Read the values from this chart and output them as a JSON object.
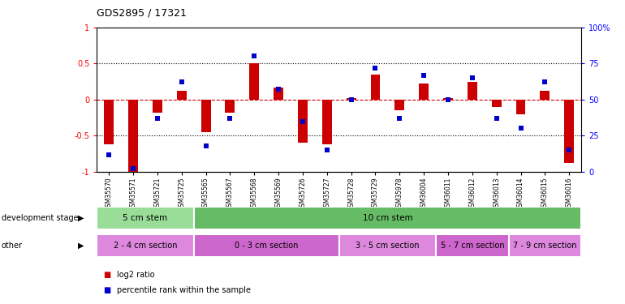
{
  "title": "GDS2895 / 17321",
  "samples": [
    "GSM35570",
    "GSM35571",
    "GSM35721",
    "GSM35725",
    "GSM35565",
    "GSM35567",
    "GSM35568",
    "GSM35569",
    "GSM35726",
    "GSM35727",
    "GSM35728",
    "GSM35729",
    "GSM35978",
    "GSM36004",
    "GSM36011",
    "GSM36012",
    "GSM36013",
    "GSM36014",
    "GSM36015",
    "GSM36016"
  ],
  "log2_ratio": [
    -0.62,
    -1.02,
    -0.18,
    0.12,
    -0.45,
    -0.18,
    0.5,
    0.17,
    -0.6,
    -0.62,
    0.02,
    0.35,
    -0.15,
    0.22,
    0.02,
    0.25,
    -0.1,
    -0.2,
    0.12,
    -0.88
  ],
  "percentile": [
    12,
    2,
    37,
    62,
    18,
    37,
    80,
    57,
    35,
    15,
    50,
    72,
    37,
    67,
    50,
    65,
    37,
    30,
    62,
    15
  ],
  "ylim_left": [
    -1,
    1
  ],
  "ylim_right": [
    0,
    100
  ],
  "yticks_left": [
    -1,
    -0.5,
    0,
    0.5,
    1
  ],
  "yticks_right": [
    0,
    25,
    50,
    75,
    100
  ],
  "bar_color": "#cc0000",
  "dot_color": "#0000cc",
  "zero_line_color": "#cc0000",
  "dotted_line_color": "#000000",
  "dev_stage_groups": [
    {
      "label": "5 cm stem",
      "start": 0,
      "end": 3,
      "color": "#99dd99"
    },
    {
      "label": "10 cm stem",
      "start": 4,
      "end": 19,
      "color": "#66bb66"
    }
  ],
  "other_groups": [
    {
      "label": "2 - 4 cm section",
      "start": 0,
      "end": 3,
      "color": "#dd88dd"
    },
    {
      "label": "0 - 3 cm section",
      "start": 4,
      "end": 9,
      "color": "#cc66cc"
    },
    {
      "label": "3 - 5 cm section",
      "start": 10,
      "end": 13,
      "color": "#dd88dd"
    },
    {
      "label": "5 - 7 cm section",
      "start": 14,
      "end": 16,
      "color": "#cc66cc"
    },
    {
      "label": "7 - 9 cm section",
      "start": 17,
      "end": 19,
      "color": "#dd88dd"
    }
  ],
  "legend_red": "log2 ratio",
  "legend_blue": "percentile rank within the sample",
  "dev_stage_label": "development stage",
  "other_label": "other"
}
